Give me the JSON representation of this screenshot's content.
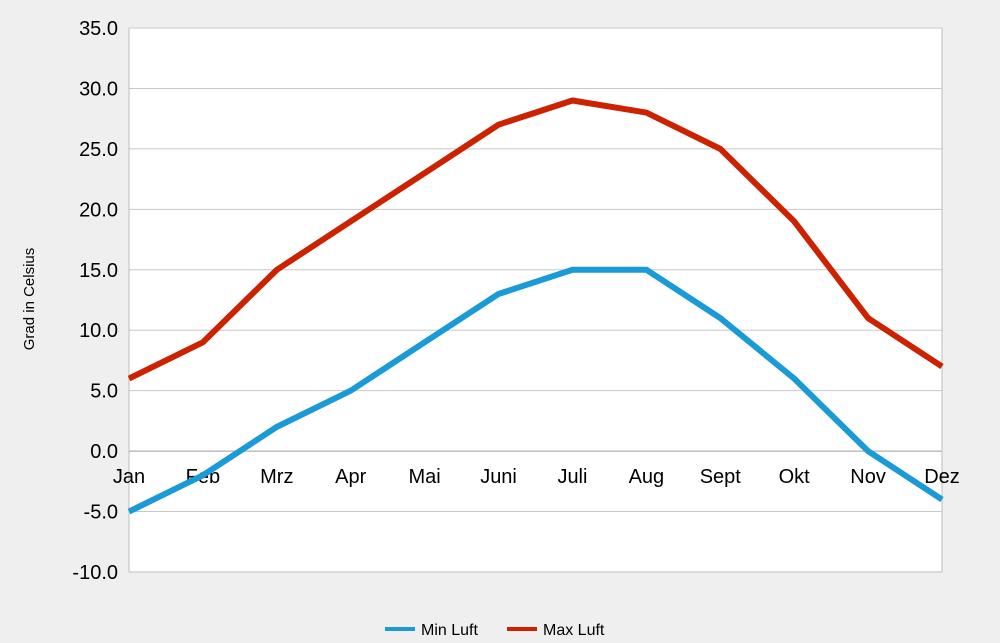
{
  "chart_data": {
    "type": "line",
    "title": "",
    "xlabel": "",
    "ylabel": "Grad in Celsius",
    "categories": [
      "Jan",
      "Feb",
      "Mrz",
      "Apr",
      "Mai",
      "Juni",
      "Juli",
      "Aug",
      "Sept",
      "Okt",
      "Nov",
      "Dez"
    ],
    "ylim": [
      -10,
      35
    ],
    "ytick_step": 5,
    "ytick_labels": [
      "35.0",
      "30.0",
      "25.0",
      "20.0",
      "15.0",
      "10.0",
      "5.0",
      "0.0",
      "-5.0",
      "-10.0"
    ],
    "grid": true,
    "legend_position": "bottom",
    "series": [
      {
        "name": "Min Luft",
        "color": "#1a9ad6",
        "values": [
          -5,
          -2,
          2,
          5,
          9,
          13,
          15,
          15,
          11,
          6,
          0,
          -4
        ]
      },
      {
        "name": "Max Luft",
        "color": "#cc2200",
        "values": [
          6,
          9,
          15,
          19,
          23,
          27,
          29,
          28,
          25,
          19,
          11,
          7
        ]
      }
    ]
  }
}
